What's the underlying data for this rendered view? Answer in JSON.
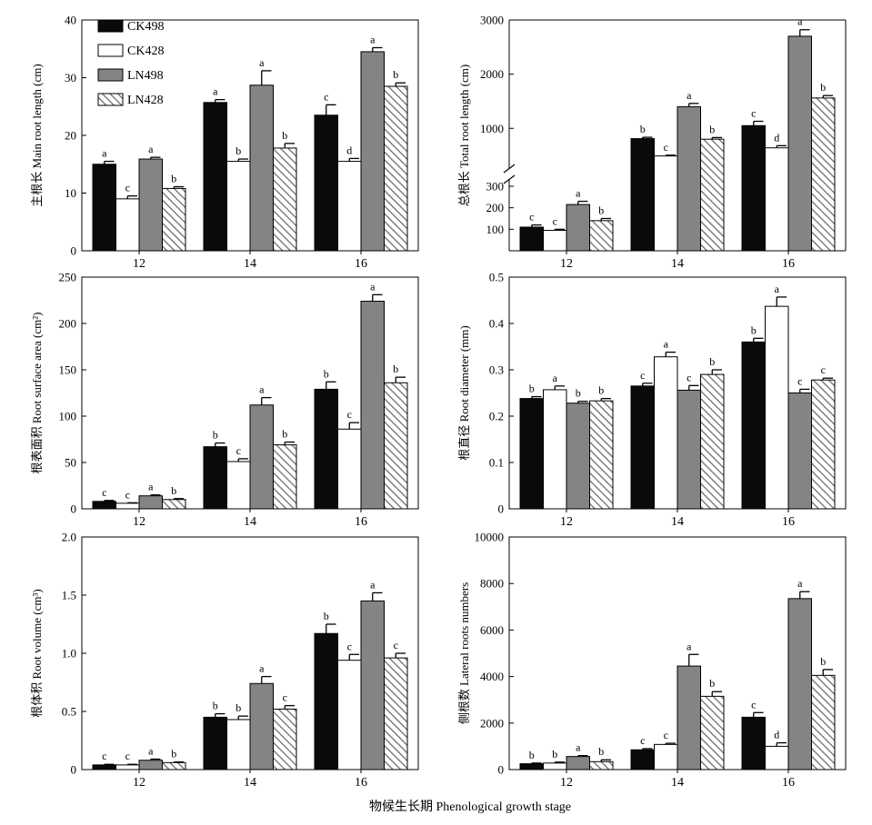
{
  "figure": {
    "xlabel": "物候生长期 Phenological growth stage"
  },
  "legend": [
    {
      "name": "CK498",
      "style": "black"
    },
    {
      "name": "CK428",
      "style": "white"
    },
    {
      "name": "LN498",
      "style": "gray"
    },
    {
      "name": "LN428",
      "style": "hatch"
    }
  ],
  "colors": {
    "black": "#0a0a0a",
    "white": "#ffffff",
    "gray": "#848484",
    "hatch_line": "#6e6e6e",
    "axis": "#000000"
  },
  "chart_data": [
    {
      "type": "bar",
      "ylabel": "主根长 Main root length (cm)",
      "ylim": [
        0,
        40
      ],
      "yticks": [
        "0",
        "10",
        "20",
        "30",
        "40"
      ],
      "categories": [
        "12",
        "14",
        "16"
      ],
      "series": [
        {
          "name": "CK498",
          "values": [
            15.0,
            25.7,
            23.5
          ],
          "errors": [
            0.5,
            0.5,
            1.8
          ],
          "letters": [
            "a",
            "a",
            "c"
          ]
        },
        {
          "name": "CK428",
          "values": [
            9.0,
            15.5,
            15.5
          ],
          "errors": [
            0.5,
            0.4,
            0.5
          ],
          "letters": [
            "c",
            "b",
            "d"
          ]
        },
        {
          "name": "LN498",
          "values": [
            15.9,
            28.7,
            34.5
          ],
          "errors": [
            0.3,
            2.5,
            0.7
          ],
          "letters": [
            "a",
            "a",
            "a"
          ]
        },
        {
          "name": "LN428",
          "values": [
            10.8,
            17.8,
            28.5
          ],
          "errors": [
            0.3,
            0.8,
            0.6
          ],
          "letters": [
            "b",
            "b",
            "b"
          ]
        }
      ]
    },
    {
      "type": "bar",
      "ylabel": "总根长 Total root length (cm)",
      "broken_axis": true,
      "lower_ylim": [
        0,
        300
      ],
      "upper_ylim": [
        300,
        3000
      ],
      "yticks_lower": [
        "100",
        "200",
        "300"
      ],
      "yticks_upper": [
        "1000",
        "2000",
        "3000"
      ],
      "categories": [
        "12",
        "14",
        "16"
      ],
      "series": [
        {
          "name": "CK498",
          "values": [
            110,
            810,
            1050
          ],
          "errors": [
            10,
            25,
            80
          ],
          "letters": [
            "c",
            "b",
            "c"
          ]
        },
        {
          "name": "CK428",
          "values": [
            95,
            490,
            640
          ],
          "errors": [
            5,
            15,
            40
          ],
          "letters": [
            "c",
            "c",
            "d"
          ]
        },
        {
          "name": "LN498",
          "values": [
            215,
            1400,
            2700
          ],
          "errors": [
            15,
            60,
            120
          ],
          "letters": [
            "a",
            "a",
            "a"
          ]
        },
        {
          "name": "LN428",
          "values": [
            140,
            800,
            1560
          ],
          "errors": [
            10,
            30,
            45
          ],
          "letters": [
            "b",
            "b",
            "b"
          ]
        }
      ]
    },
    {
      "type": "bar",
      "ylabel": "根表面积 Root surface area (cm²)",
      "ylim": [
        0,
        250
      ],
      "yticks": [
        "0",
        "50",
        "100",
        "150",
        "200",
        "250"
      ],
      "categories": [
        "12",
        "14",
        "16"
      ],
      "series": [
        {
          "name": "CK498",
          "values": [
            8,
            67,
            129
          ],
          "errors": [
            1,
            4,
            8
          ],
          "letters": [
            "c",
            "b",
            "b"
          ]
        },
        {
          "name": "CK428",
          "values": [
            6,
            51,
            86
          ],
          "errors": [
            0.5,
            3,
            7
          ],
          "letters": [
            "c",
            "c",
            "c"
          ]
        },
        {
          "name": "LN498",
          "values": [
            14,
            112,
            224
          ],
          "errors": [
            1,
            8,
            7
          ],
          "letters": [
            "a",
            "a",
            "a"
          ]
        },
        {
          "name": "LN428",
          "values": [
            10,
            69,
            136
          ],
          "errors": [
            1,
            3,
            6
          ],
          "letters": [
            "b",
            "b",
            "b"
          ]
        }
      ]
    },
    {
      "type": "bar",
      "ylabel": "根直径 Root diameter (mm)",
      "ylim": [
        0,
        0.5
      ],
      "yticks": [
        "0",
        "0.1",
        "0.2",
        "0.3",
        "0.4",
        "0.5"
      ],
      "categories": [
        "12",
        "14",
        "16"
      ],
      "series": [
        {
          "name": "CK498",
          "values": [
            0.238,
            0.265,
            0.36
          ],
          "errors": [
            0.004,
            0.006,
            0.008
          ],
          "letters": [
            "b",
            "c",
            "b"
          ]
        },
        {
          "name": "CK428",
          "values": [
            0.257,
            0.328,
            0.437
          ],
          "errors": [
            0.008,
            0.01,
            0.02
          ],
          "letters": [
            "a",
            "a",
            "a"
          ]
        },
        {
          "name": "LN498",
          "values": [
            0.228,
            0.256,
            0.25
          ],
          "errors": [
            0.004,
            0.01,
            0.008
          ],
          "letters": [
            "b",
            "c",
            "c"
          ]
        },
        {
          "name": "LN428",
          "values": [
            0.233,
            0.29,
            0.278
          ],
          "errors": [
            0.005,
            0.01,
            0.004
          ],
          "letters": [
            "b",
            "b",
            "c"
          ]
        }
      ]
    },
    {
      "type": "bar",
      "ylabel": "根体积 Root volume (cm³)",
      "ylim": [
        0,
        2.0
      ],
      "yticks": [
        "0",
        "0.5",
        "1.0",
        "1.5",
        "2.0"
      ],
      "categories": [
        "12",
        "14",
        "16"
      ],
      "series": [
        {
          "name": "CK498",
          "values": [
            0.04,
            0.45,
            1.17
          ],
          "errors": [
            0.005,
            0.03,
            0.08
          ],
          "letters": [
            "c",
            "b",
            "b"
          ]
        },
        {
          "name": "CK428",
          "values": [
            0.04,
            0.43,
            0.94
          ],
          "errors": [
            0.005,
            0.03,
            0.05
          ],
          "letters": [
            "c",
            "b",
            "c"
          ]
        },
        {
          "name": "LN498",
          "values": [
            0.08,
            0.74,
            1.45
          ],
          "errors": [
            0.01,
            0.06,
            0.07
          ],
          "letters": [
            "a",
            "a",
            "a"
          ]
        },
        {
          "name": "LN428",
          "values": [
            0.06,
            0.52,
            0.96
          ],
          "errors": [
            0.005,
            0.03,
            0.04
          ],
          "letters": [
            "b",
            "c",
            "c"
          ]
        }
      ]
    },
    {
      "type": "bar",
      "ylabel": "侧根数 Lateral roots numbers",
      "ylim": [
        0,
        10000
      ],
      "yticks": [
        "0",
        "2000",
        "4000",
        "6000",
        "8000",
        "10000"
      ],
      "categories": [
        "12",
        "14",
        "16"
      ],
      "series": [
        {
          "name": "CK498",
          "values": [
            250,
            850,
            2250
          ],
          "errors": [
            30,
            50,
            200
          ],
          "letters": [
            "b",
            "c",
            "c"
          ]
        },
        {
          "name": "CK428",
          "values": [
            280,
            1080,
            1000
          ],
          "errors": [
            40,
            50,
            150
          ],
          "letters": [
            "b",
            "c",
            "d"
          ]
        },
        {
          "name": "LN498",
          "values": [
            560,
            4450,
            7350
          ],
          "errors": [
            40,
            500,
            300
          ],
          "letters": [
            "a",
            "a",
            "a"
          ]
        },
        {
          "name": "LN428",
          "values": [
            340,
            3150,
            4050
          ],
          "errors": [
            80,
            200,
            250
          ],
          "letters": [
            "b",
            "b",
            "b"
          ]
        }
      ]
    }
  ]
}
